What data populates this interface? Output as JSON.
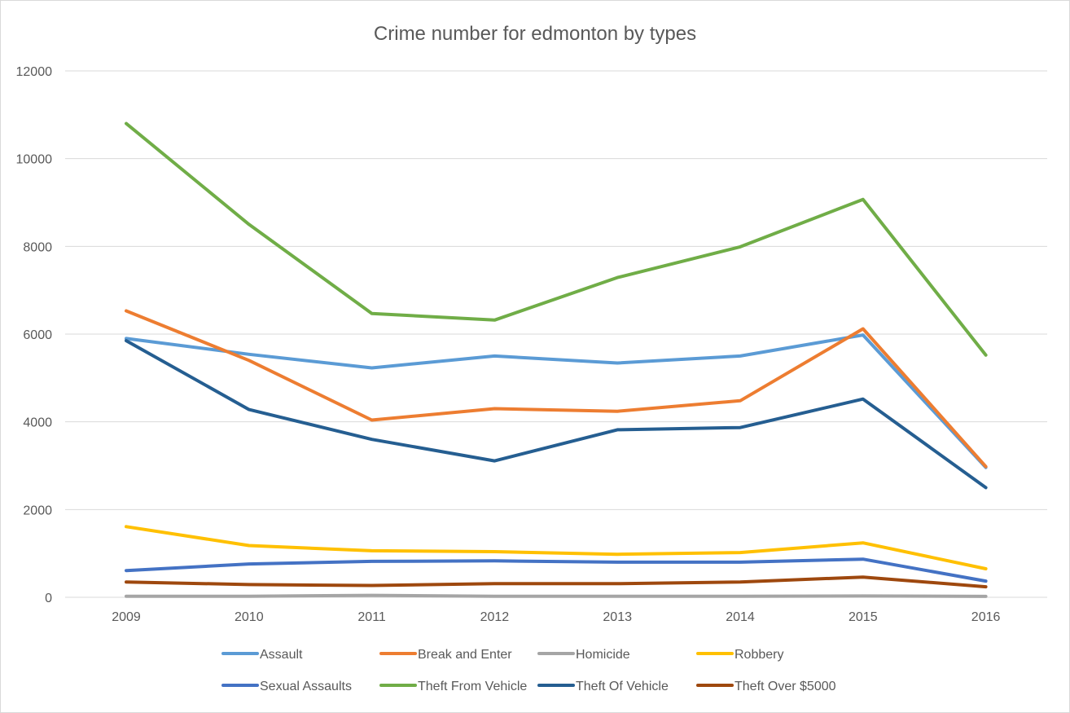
{
  "chart_data": {
    "type": "line",
    "title": "Crime number for edmonton by types",
    "xlabel": "",
    "ylabel": "",
    "ylim": [
      0,
      12000
    ],
    "yticks": [
      0,
      2000,
      4000,
      6000,
      8000,
      10000,
      12000
    ],
    "categories": [
      "2009",
      "2010",
      "2011",
      "2012",
      "2013",
      "2014",
      "2015",
      "2016"
    ],
    "grid": true,
    "legend_position": "bottom",
    "series": [
      {
        "name": "Assault",
        "color": "#5b9bd5",
        "values": [
          5900,
          5540,
          5230,
          5500,
          5340,
          5500,
          5980,
          2960
        ]
      },
      {
        "name": "Break and Enter",
        "color": "#ed7d31",
        "values": [
          6530,
          5400,
          4040,
          4300,
          4240,
          4480,
          6120,
          2980
        ]
      },
      {
        "name": "Homicide",
        "color": "#a5a5a5",
        "values": [
          25,
          25,
          45,
          25,
          25,
          25,
          30,
          20
        ]
      },
      {
        "name": "Robbery",
        "color": "#ffc000",
        "values": [
          1610,
          1180,
          1060,
          1040,
          980,
          1020,
          1240,
          650
        ]
      },
      {
        "name": "Sexual Assaults",
        "color": "#4472c4",
        "values": [
          610,
          760,
          820,
          830,
          800,
          800,
          870,
          370
        ]
      },
      {
        "name": "Theft From Vehicle",
        "color": "#70ad47",
        "values": [
          10800,
          8500,
          6470,
          6320,
          7290,
          7990,
          9070,
          5520
        ]
      },
      {
        "name": "Theft Of Vehicle",
        "color": "#255e91",
        "values": [
          5850,
          4280,
          3600,
          3110,
          3820,
          3870,
          4520,
          2500
        ]
      },
      {
        "name": "Theft Over $5000",
        "color": "#9e480e",
        "values": [
          350,
          290,
          270,
          310,
          310,
          350,
          460,
          240
        ]
      }
    ]
  }
}
